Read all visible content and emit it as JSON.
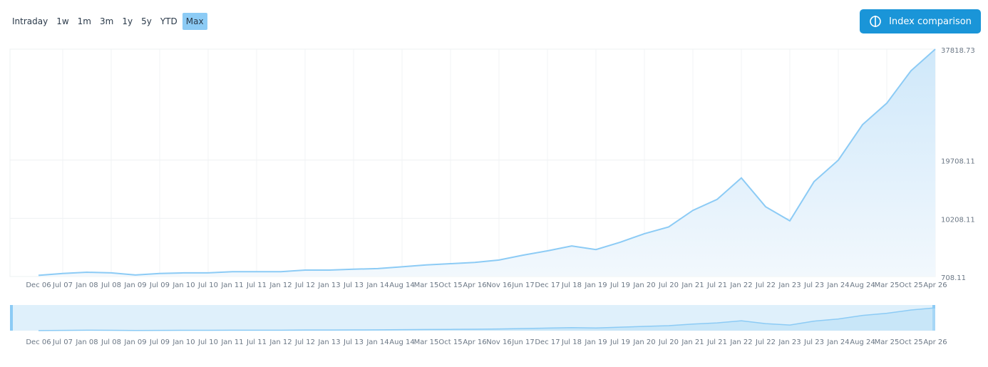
{
  "buttons": [
    "Intraday",
    "1w",
    "1m",
    "3m",
    "1y",
    "5y",
    "YTD",
    "Max"
  ],
  "active_button": "Max",
  "compare_button": "Index comparison",
  "chart_data": {
    "type": "area",
    "categories": [
      "Dec 06",
      "Jul 07",
      "Jan 08",
      "Jul 08",
      "Jan 09",
      "Jul 09",
      "Jan 10",
      "Jul 10",
      "Jan 11",
      "Jul 11",
      "Jan 12",
      "Jul 12",
      "Jan 13",
      "Jul 13",
      "Jan 14",
      "Aug 14",
      "Mar 15",
      "Oct 15",
      "Apr 16",
      "Nov 16",
      "Jun 17",
      "Dec 17",
      "Jul 18",
      "Jan 19",
      "Jul 19",
      "Jan 20",
      "Jul 20",
      "Jan 21",
      "Jul 21",
      "Jan 22",
      "Jul 22",
      "Jan 23",
      "Jul 23",
      "Jan 24",
      "Aug 24",
      "Mar 25",
      "Oct 25",
      "Apr 26"
    ],
    "values": [
      900,
      1200,
      1400,
      1300,
      950,
      1200,
      1300,
      1300,
      1500,
      1500,
      1500,
      1750,
      1750,
      1900,
      2000,
      2300,
      2600,
      2800,
      3000,
      3400,
      4200,
      4900,
      5700,
      5100,
      6300,
      7700,
      8800,
      11500,
      13300,
      16800,
      12100,
      9800,
      16200,
      19700,
      25500,
      29000,
      34300,
      37818.73
    ],
    "color": "#8ccbf5",
    "ylim": [
      708.11,
      37818.73
    ],
    "yticks": [
      708.11,
      10208.11,
      19708.11,
      37818.73
    ],
    "grid": true
  }
}
